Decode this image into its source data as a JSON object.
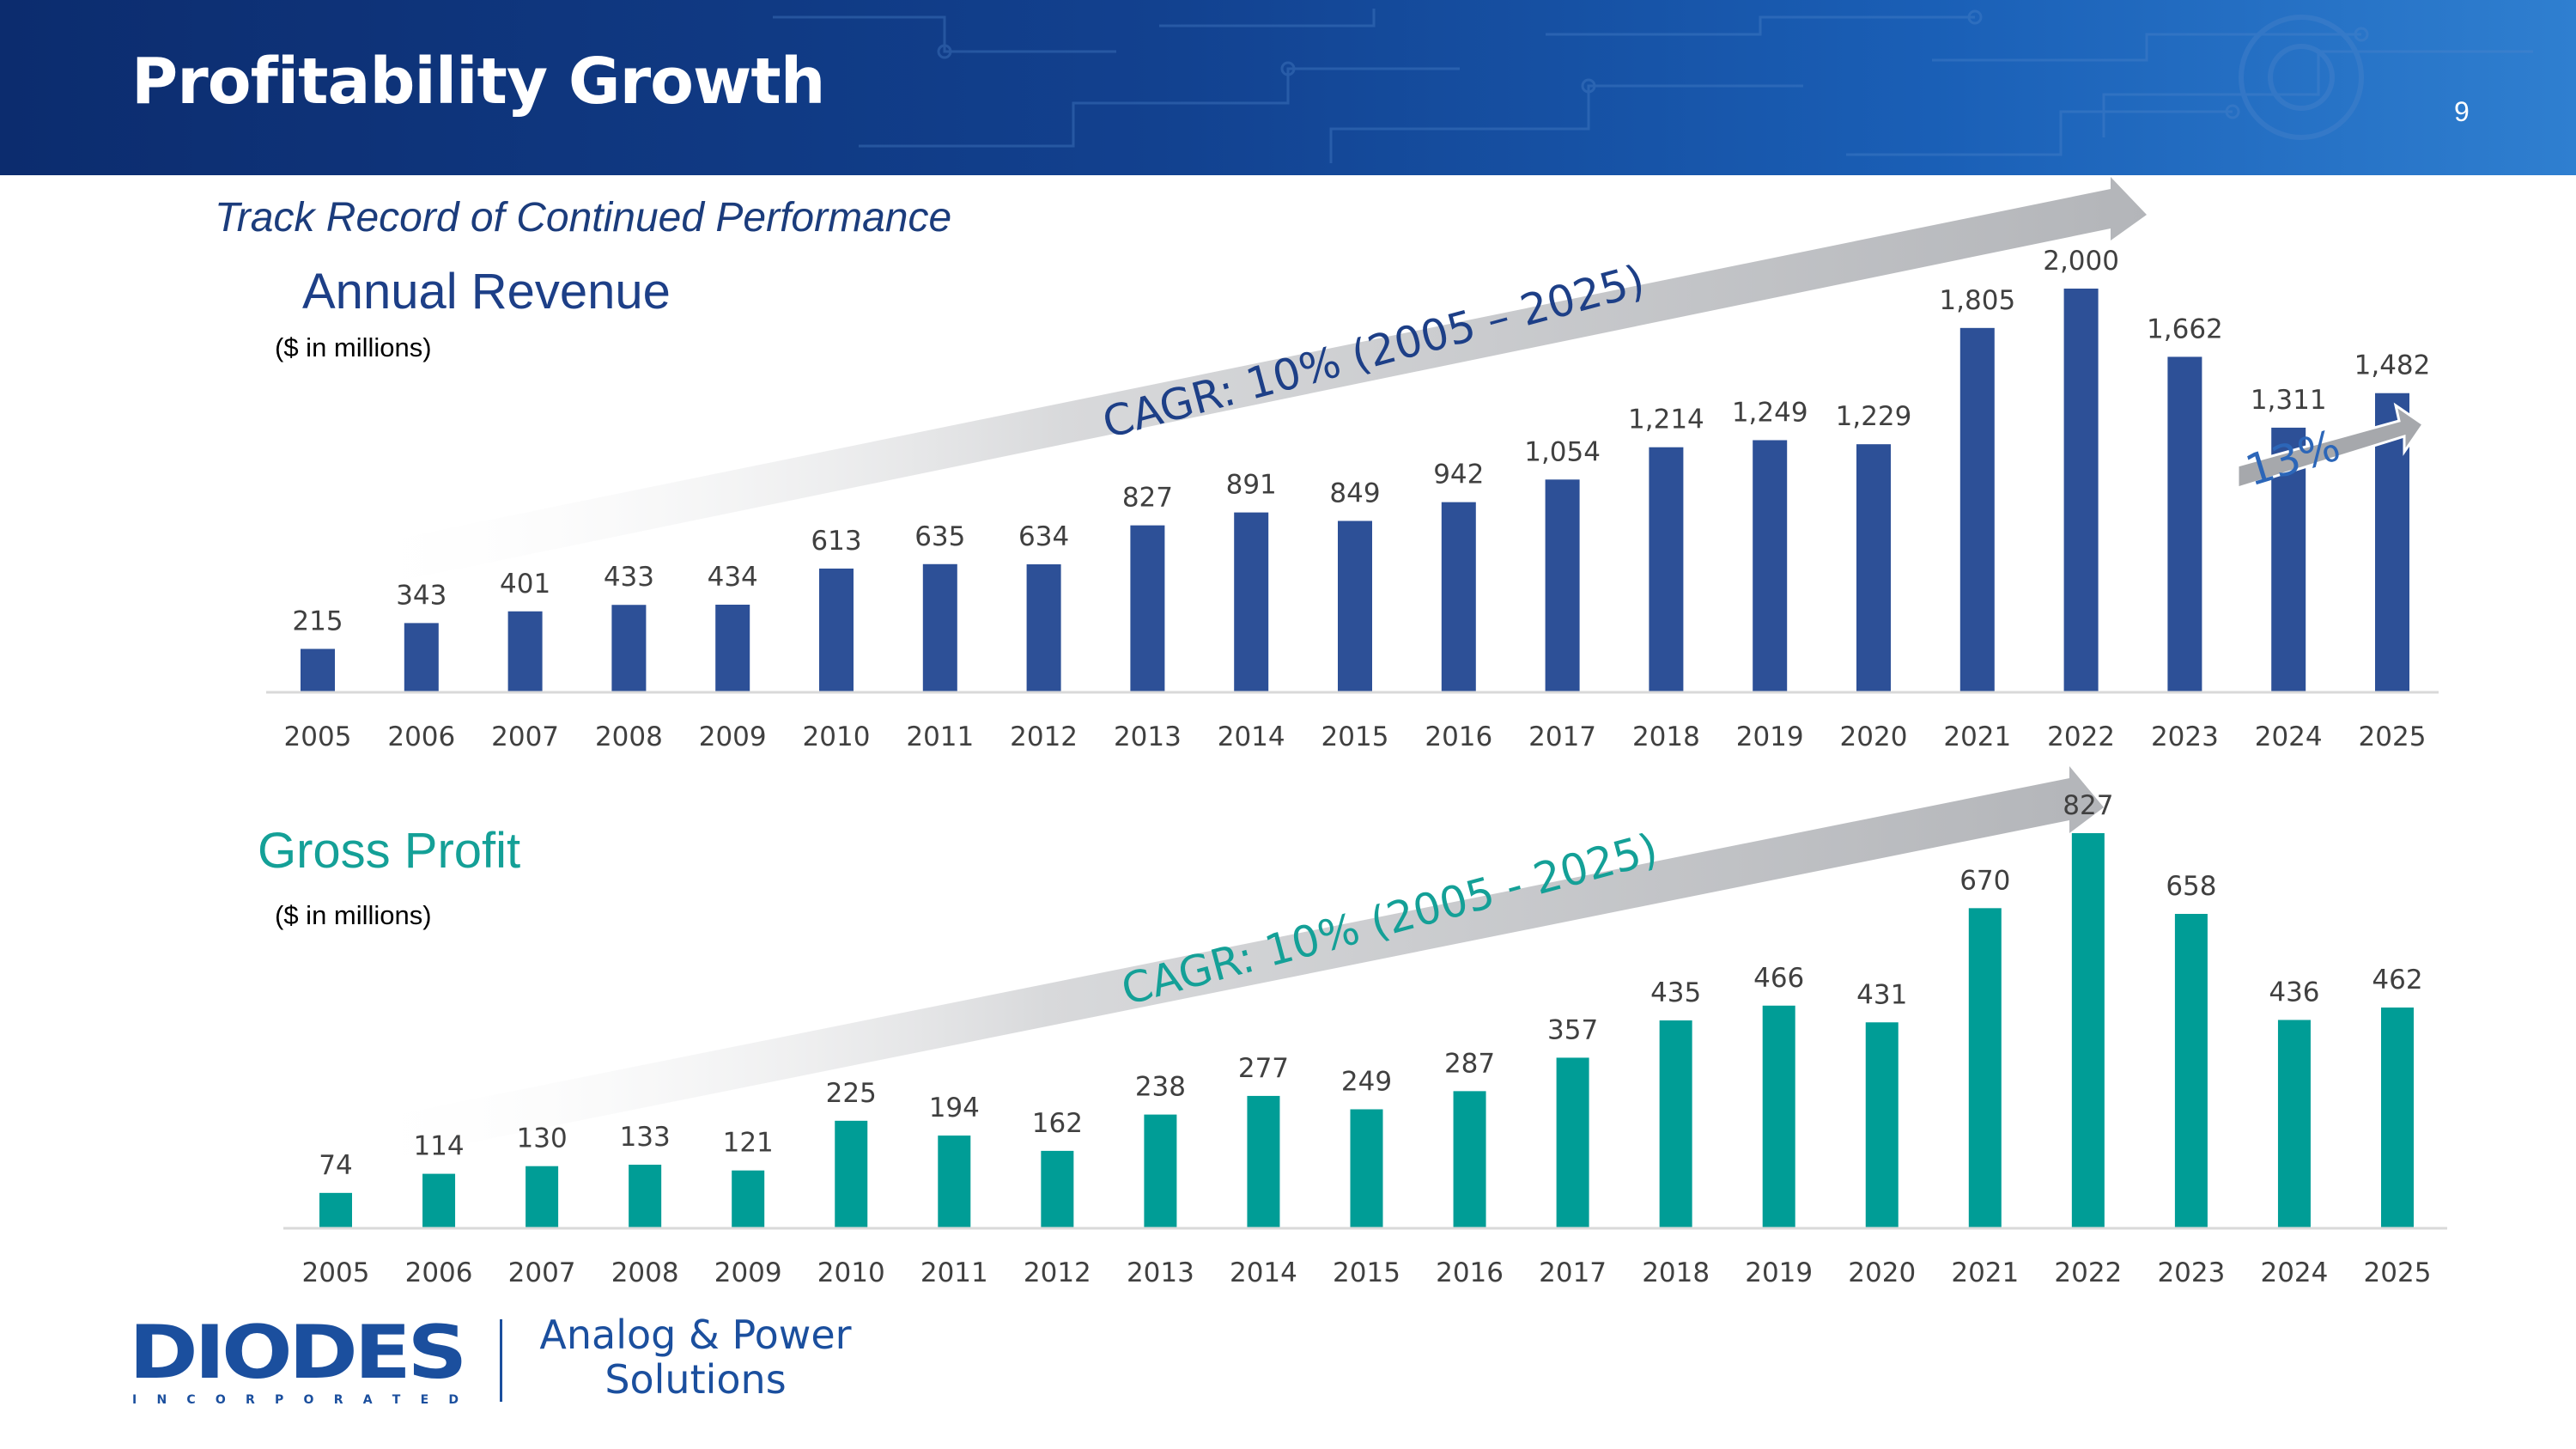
{
  "slide": {
    "title": "Profitability Growth",
    "page_number": "9",
    "subtitle": "Track Record of Continued Performance",
    "colors": {
      "header": "#12418f",
      "revenue_bar": "#2d5097",
      "gross_profit_bar": "#009d96",
      "cagr_arrow": "#b8babe"
    }
  },
  "brand": {
    "logo_text": "DIODES",
    "logo_subtext": "I N C O R P O R A T E D",
    "tagline_line1": "Analog & Power",
    "tagline_line2": "Solutions"
  },
  "chart_data": [
    {
      "type": "bar",
      "title": "Annual Revenue",
      "units": "($ in millions)",
      "categories": [
        "2005",
        "2006",
        "2007",
        "2008",
        "2009",
        "2010",
        "2011",
        "2012",
        "2013",
        "2014",
        "2015",
        "2016",
        "2017",
        "2018",
        "2019",
        "2020",
        "2021",
        "2022",
        "2023",
        "2024",
        "2025"
      ],
      "values": [
        215,
        343,
        401,
        433,
        434,
        613,
        635,
        634,
        827,
        891,
        849,
        942,
        1054,
        1214,
        1249,
        1229,
        1805,
        2000,
        1662,
        1311,
        1482
      ],
      "value_labels": [
        "215",
        "343",
        "401",
        "433",
        "434",
        "613",
        "635",
        "634",
        "827",
        "891",
        "849",
        "942",
        "1,054",
        "1,214",
        "1,249",
        "1,229",
        "1,805",
        "2,000",
        "1,662",
        "1,311",
        "1,482"
      ],
      "ylim": [
        0,
        2000
      ],
      "color": "#2d5097",
      "annotations": [
        {
          "text": "CAGR: 10% (2005 – 2025)",
          "from": "2005",
          "to": "2025"
        },
        {
          "text": "13%",
          "from": "2024",
          "to": "2025"
        }
      ]
    },
    {
      "type": "bar",
      "title": "Gross Profit",
      "units": "($ in millions)",
      "categories": [
        "2005",
        "2006",
        "2007",
        "2008",
        "2009",
        "2010",
        "2011",
        "2012",
        "2013",
        "2014",
        "2015",
        "2016",
        "2017",
        "2018",
        "2019",
        "2020",
        "2021",
        "2022",
        "2023",
        "2024",
        "2025"
      ],
      "values": [
        74,
        114,
        130,
        133,
        121,
        225,
        194,
        162,
        238,
        277,
        249,
        287,
        357,
        435,
        466,
        431,
        670,
        827,
        658,
        436,
        462
      ],
      "value_labels": [
        "74",
        "114",
        "130",
        "133",
        "121",
        "225",
        "194",
        "162",
        "238",
        "277",
        "249",
        "287",
        "357",
        "435",
        "466",
        "431",
        "670",
        "827",
        "658",
        "436",
        "462"
      ],
      "ylim": [
        0,
        827
      ],
      "color": "#009d96",
      "annotations": [
        {
          "text": "CAGR: 10% (2005 - 2025)",
          "from": "2005",
          "to": "2025"
        }
      ]
    }
  ]
}
